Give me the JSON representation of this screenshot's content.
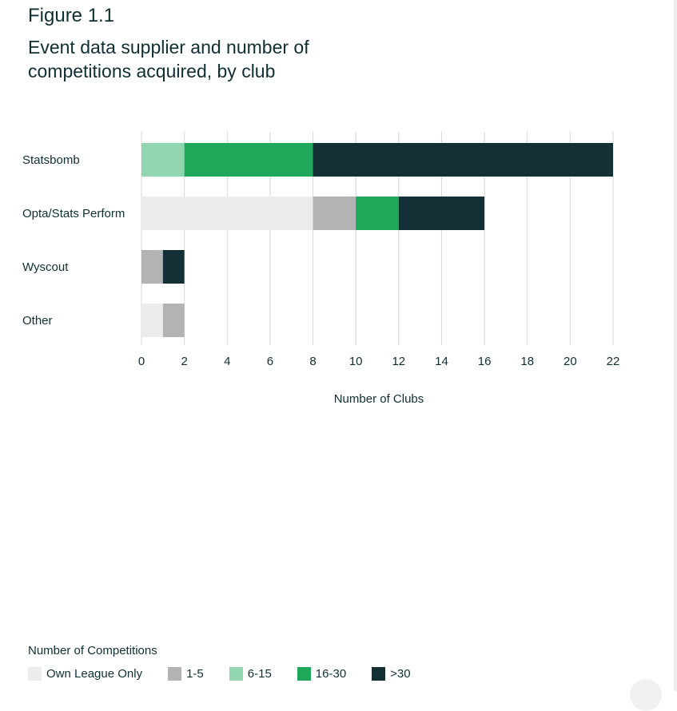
{
  "figure_label": "Figure 1.1",
  "chart_data": {
    "type": "bar",
    "orientation": "horizontal",
    "stacked": true,
    "title": "Event data supplier and number of competitions acquired, by club",
    "categories": [
      "Statsbomb",
      "Opta/Stats Perform",
      "Wyscout",
      "Other"
    ],
    "series": [
      {
        "name": "Own League Only",
        "color": "#ececec",
        "values": [
          0,
          8,
          0,
          1
        ]
      },
      {
        "name": "1-5",
        "color": "#b3b3b3",
        "values": [
          0,
          2,
          1,
          1
        ]
      },
      {
        "name": "6-15",
        "color": "#91d6ae",
        "values": [
          2,
          0,
          0,
          0
        ]
      },
      {
        "name": "16-30",
        "color": "#1fa85a",
        "values": [
          6,
          2,
          0,
          0
        ]
      },
      {
        "name": ">30",
        "color": "#123035",
        "values": [
          14,
          4,
          1,
          0
        ]
      }
    ],
    "xlabel": "Number of Clubs",
    "ylabel": "",
    "xlim": [
      0,
      22
    ],
    "xticks": [
      0,
      2,
      4,
      6,
      8,
      10,
      12,
      14,
      16,
      18,
      20,
      22
    ],
    "grid": true,
    "legend_title": "Number of Competitions",
    "legend_position": "bottom-left"
  }
}
